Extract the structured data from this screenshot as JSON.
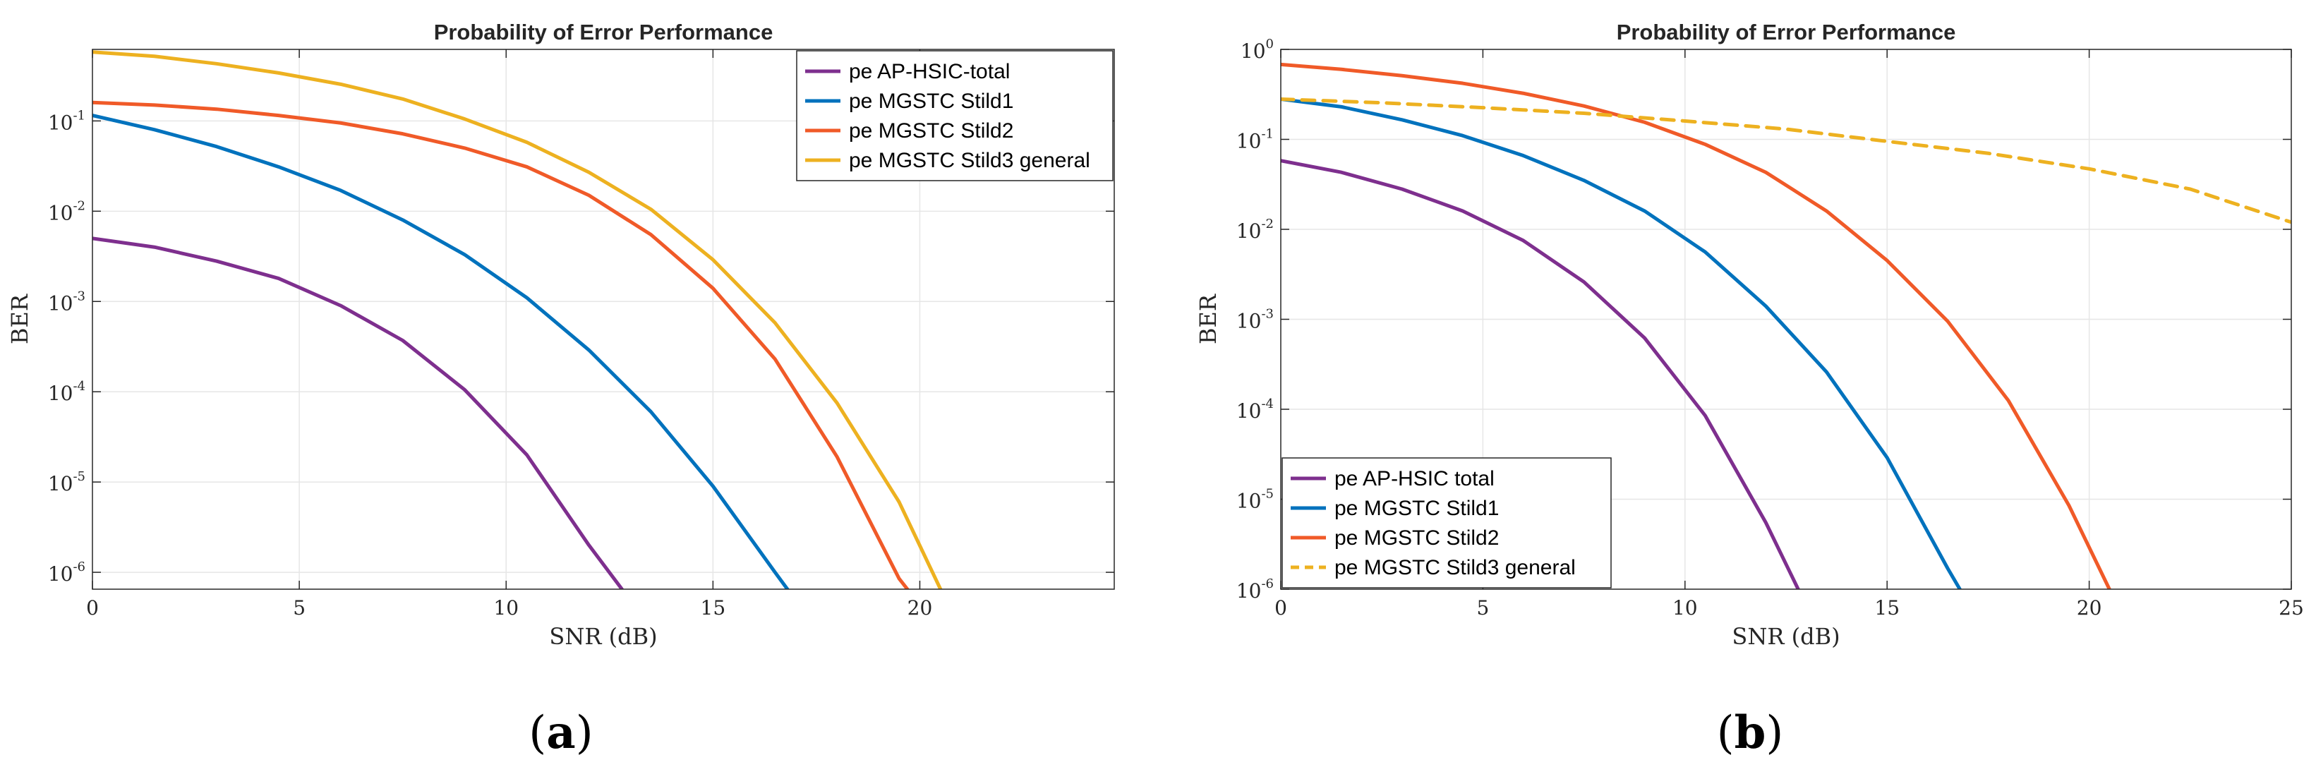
{
  "subfigure_labels": {
    "a": {
      "open": "(",
      "letter": "a",
      "close": ")"
    },
    "b": {
      "open": "(",
      "letter": "b",
      "close": ")"
    }
  },
  "chart_data": [
    {
      "type": "line",
      "title": "Probability of Error Performance",
      "xlabel": "SNR (dB)",
      "ylabel": "BER",
      "xlim": [
        0,
        24.7
      ],
      "ylim": [
        6.5e-07,
        0.62
      ],
      "yscale": "log",
      "grid": true,
      "legend_position": "top-right",
      "x_ticks": [
        "0",
        "5",
        "10",
        "15",
        "20"
      ],
      "y_ticks": [
        {
          "base": "10",
          "exp": "-1"
        },
        {
          "base": "10",
          "exp": "-2"
        },
        {
          "base": "10",
          "exp": "-3"
        },
        {
          "base": "10",
          "exp": "-4"
        },
        {
          "base": "10",
          "exp": "-5"
        },
        {
          "base": "10",
          "exp": "-6"
        }
      ],
      "series": [
        {
          "name": "pe AP-HSIC-total",
          "color": "#7E2F8E",
          "dash": "solid",
          "x": [
            0,
            1.5,
            3,
            4.5,
            6,
            7.5,
            9,
            10.5,
            12,
            12.8
          ],
          "y": [
            0.005,
            0.004,
            0.0028,
            0.0018,
            0.0009,
            0.00037,
            0.000105,
            2e-05,
            2e-06,
            6.5e-07
          ]
        },
        {
          "name": "pe MGSTC Stild1",
          "color": "#0072BD",
          "dash": "solid",
          "x": [
            0,
            1.5,
            3,
            4.5,
            6,
            7.5,
            9,
            10.5,
            12,
            13.5,
            15,
            16.5,
            16.8
          ],
          "y": [
            0.115,
            0.08,
            0.052,
            0.031,
            0.017,
            0.008,
            0.0033,
            0.0011,
            0.00029,
            6e-05,
            9e-06,
            1e-06,
            6.5e-07
          ]
        },
        {
          "name": "pe MGSTC Stild2",
          "color": "#F05A28",
          "dash": "solid",
          "x": [
            0,
            1.5,
            3,
            4.5,
            6,
            7.5,
            9,
            10.5,
            12,
            13.5,
            15,
            16.5,
            18,
            19.5,
            19.7
          ],
          "y": [
            0.16,
            0.15,
            0.135,
            0.115,
            0.095,
            0.072,
            0.05,
            0.031,
            0.015,
            0.0055,
            0.0014,
            0.00023,
            1.9e-05,
            8.5e-07,
            6.5e-07
          ]
        },
        {
          "name": "pe MGSTC Stild3 general",
          "color": "#EDB120",
          "dash": "solid",
          "x": [
            0,
            1.5,
            3,
            4.5,
            6,
            7.5,
            9,
            10.5,
            12,
            13.5,
            15,
            16.5,
            18,
            19.5,
            20.5
          ],
          "y": [
            0.58,
            0.52,
            0.43,
            0.34,
            0.255,
            0.175,
            0.105,
            0.058,
            0.027,
            0.0105,
            0.0029,
            0.00058,
            7.5e-05,
            6e-06,
            6.5e-07
          ]
        }
      ]
    },
    {
      "type": "line",
      "title": "Probability of Error Performance",
      "xlabel": "SNR (dB)",
      "ylabel": "BER",
      "xlim": [
        0,
        25
      ],
      "ylim": [
        1e-06,
        1
      ],
      "yscale": "log",
      "grid": true,
      "legend_position": "bottom-left",
      "x_ticks": [
        "0",
        "5",
        "10",
        "15",
        "20",
        "25"
      ],
      "y_ticks": [
        {
          "base": "10",
          "exp": "0"
        },
        {
          "base": "10",
          "exp": "-1"
        },
        {
          "base": "10",
          "exp": "-2"
        },
        {
          "base": "10",
          "exp": "-3"
        },
        {
          "base": "10",
          "exp": "-4"
        },
        {
          "base": "10",
          "exp": "-5"
        },
        {
          "base": "10",
          "exp": "-6"
        }
      ],
      "series": [
        {
          "name": "pe AP-HSIC total",
          "color": "#7E2F8E",
          "dash": "solid",
          "x": [
            0,
            1.5,
            3,
            4.5,
            6,
            7.5,
            9,
            10.5,
            12,
            12.8
          ],
          "y": [
            0.058,
            0.043,
            0.028,
            0.016,
            0.0075,
            0.0026,
            0.00062,
            8.5e-05,
            5.5e-06,
            1e-06
          ]
        },
        {
          "name": "pe MGSTC Stild1",
          "color": "#0072BD",
          "dash": "solid",
          "x": [
            0,
            1.5,
            3,
            4.5,
            6,
            7.5,
            9,
            10.5,
            12,
            13.5,
            15,
            16.5,
            16.8
          ],
          "y": [
            0.28,
            0.23,
            0.165,
            0.11,
            0.066,
            0.035,
            0.016,
            0.0056,
            0.0014,
            0.00026,
            2.9e-05,
            1.7e-06,
            1e-06
          ]
        },
        {
          "name": "pe MGSTC Stild2",
          "color": "#F05A28",
          "dash": "solid",
          "x": [
            0,
            1.5,
            3,
            4.5,
            6,
            7.5,
            9,
            10.5,
            12,
            13.5,
            15,
            16.5,
            18,
            19.5,
            20.5
          ],
          "y": [
            0.68,
            0.6,
            0.51,
            0.42,
            0.325,
            0.235,
            0.155,
            0.088,
            0.043,
            0.016,
            0.0045,
            0.00095,
            0.000125,
            8.5e-06,
            1e-06
          ]
        },
        {
          "name": "pe MGSTC Stild3 general",
          "color": "#EDB120",
          "dash": "dashed",
          "x": [
            0,
            2.5,
            5,
            7.5,
            10,
            12.5,
            15,
            17.5,
            20,
            22.5,
            25
          ],
          "y": [
            0.28,
            0.255,
            0.225,
            0.195,
            0.16,
            0.13,
            0.095,
            0.07,
            0.047,
            0.028,
            0.012
          ]
        }
      ]
    }
  ]
}
